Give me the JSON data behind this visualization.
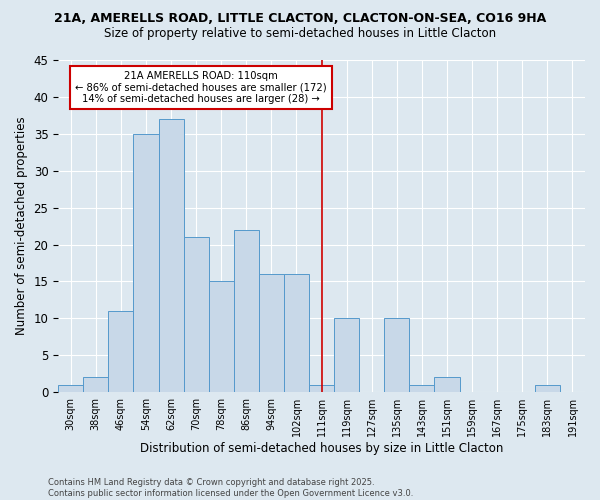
{
  "title_line1": "21A, AMERELLS ROAD, LITTLE CLACTON, CLACTON-ON-SEA, CO16 9HA",
  "title_line2": "Size of property relative to semi-detached houses in Little Clacton",
  "xlabel": "Distribution of semi-detached houses by size in Little Clacton",
  "ylabel": "Number of semi-detached properties",
  "footnote": "Contains HM Land Registry data © Crown copyright and database right 2025.\nContains public sector information licensed under the Open Government Licence v3.0.",
  "bar_labels": [
    "30sqm",
    "38sqm",
    "46sqm",
    "54sqm",
    "62sqm",
    "70sqm",
    "78sqm",
    "86sqm",
    "94sqm",
    "102sqm",
    "111sqm",
    "119sqm",
    "127sqm",
    "135sqm",
    "143sqm",
    "151sqm",
    "159sqm",
    "167sqm",
    "175sqm",
    "183sqm",
    "191sqm"
  ],
  "bar_values": [
    1,
    2,
    11,
    35,
    37,
    21,
    15,
    22,
    16,
    16,
    1,
    10,
    0,
    10,
    1,
    2,
    0,
    0,
    0,
    1,
    0
  ],
  "bar_color": "#c8d8e8",
  "bar_edge_color": "#5599cc",
  "background_color": "#dde8f0",
  "vline_x_index": 10,
  "vline_color": "#cc0000",
  "annotation_title": "21A AMERELLS ROAD: 110sqm",
  "annotation_line2": "← 86% of semi-detached houses are smaller (172)",
  "annotation_line3": "14% of semi-detached houses are larger (28) →",
  "annotation_box_color": "#cc0000",
  "ylim": [
    0,
    45
  ],
  "yticks": [
    0,
    5,
    10,
    15,
    20,
    25,
    30,
    35,
    40,
    45
  ]
}
